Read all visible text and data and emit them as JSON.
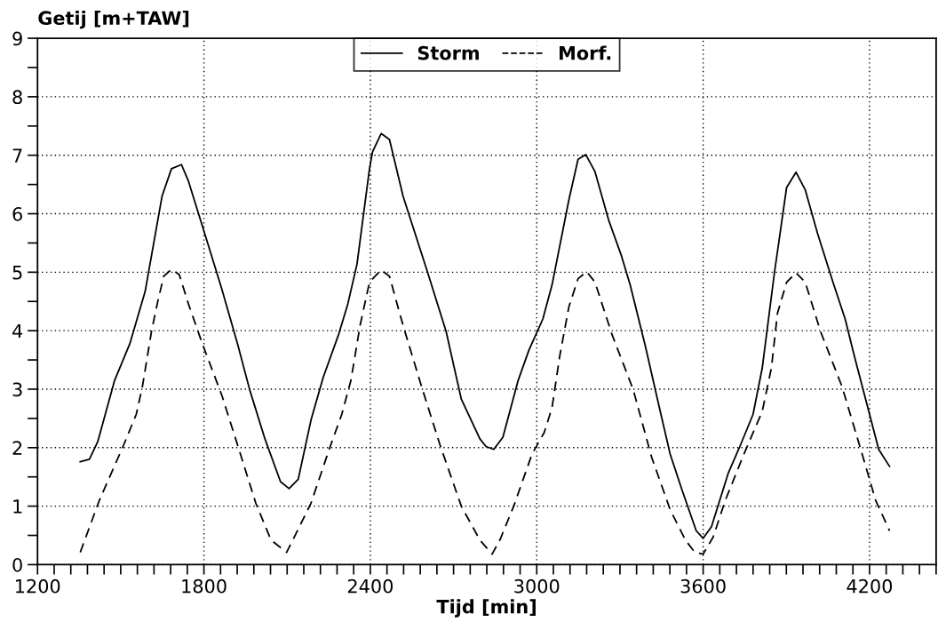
{
  "chart_data": {
    "type": "line",
    "ylabel": "Getij [m+TAW]",
    "xlabel": "Tijd [min]",
    "xlim": [
      1200,
      4440
    ],
    "ylim": [
      0,
      9
    ],
    "xticks": [
      1200,
      {
        "value": 1260,
        "label": null
      },
      {
        "value": 1320,
        "label": null
      },
      {
        "value": 1380,
        "label": null
      },
      {
        "value": 1440,
        "label": null
      },
      {
        "value": 1500,
        "label": null
      },
      {
        "value": 1560,
        "label": null
      },
      {
        "value": 1620,
        "label": null
      },
      {
        "value": 1680,
        "label": null
      },
      {
        "value": 1740,
        "label": null
      },
      1800,
      {
        "value": 1860,
        "label": null
      },
      {
        "value": 1920,
        "label": null
      },
      {
        "value": 1980,
        "label": null
      },
      {
        "value": 2040,
        "label": null
      },
      {
        "value": 2100,
        "label": null
      },
      {
        "value": 2160,
        "label": null
      },
      {
        "value": 2220,
        "label": null
      },
      {
        "value": 2280,
        "label": null
      },
      {
        "value": 2340,
        "label": null
      },
      2400,
      {
        "value": 2460,
        "label": null
      },
      {
        "value": 2520,
        "label": null
      },
      {
        "value": 2580,
        "label": null
      },
      {
        "value": 2640,
        "label": null
      },
      {
        "value": 2700,
        "label": null
      },
      {
        "value": 2760,
        "label": null
      },
      {
        "value": 2820,
        "label": null
      },
      {
        "value": 2880,
        "label": null
      },
      {
        "value": 2940,
        "label": null
      },
      3000,
      {
        "value": 3060,
        "label": null
      },
      {
        "value": 3120,
        "label": null
      },
      {
        "value": 3180,
        "label": null
      },
      {
        "value": 3240,
        "label": null
      },
      {
        "value": 3300,
        "label": null
      },
      {
        "value": 3360,
        "label": null
      },
      {
        "value": 3420,
        "label": null
      },
      {
        "value": 3480,
        "label": null
      },
      {
        "value": 3540,
        "label": null
      },
      3600,
      {
        "value": 3660,
        "label": null
      },
      {
        "value": 3720,
        "label": null
      },
      {
        "value": 3780,
        "label": null
      },
      {
        "value": 3840,
        "label": null
      },
      {
        "value": 3900,
        "label": null
      },
      {
        "value": 3960,
        "label": null
      },
      {
        "value": 4020,
        "label": null
      },
      {
        "value": 4080,
        "label": null
      },
      {
        "value": 4140,
        "label": null
      },
      4200,
      {
        "value": 4260,
        "label": null
      },
      {
        "value": 4320,
        "label": null
      },
      {
        "value": 4380,
        "label": null
      },
      {
        "value": 4440,
        "label": null
      }
    ],
    "yticks": [
      0,
      {
        "value": 0.5,
        "label": null
      },
      1,
      {
        "value": 1.5,
        "label": null
      },
      2,
      {
        "value": 2.5,
        "label": null
      },
      3,
      {
        "value": 3.5,
        "label": null
      },
      4,
      {
        "value": 4.5,
        "label": null
      },
      5,
      {
        "value": 5.5,
        "label": null
      },
      6,
      {
        "value": 6.5,
        "label": null
      },
      7,
      {
        "value": 7.5,
        "label": null
      },
      8,
      {
        "value": 8.5,
        "label": null
      },
      9
    ],
    "grid": true,
    "legend": "top",
    "marker": "none",
    "series": [
      {
        "name": "Storm",
        "color": "#000000",
        "line_style": "solid",
        "x": [
          1354,
          1387,
          1417,
          1478,
          1533,
          1588,
          1649,
          1683,
          1719,
          1744,
          1799,
          1864,
          1921,
          1965,
          2020,
          2076,
          2107,
          2140,
          2186,
          2230,
          2286,
          2319,
          2352,
          2397,
          2408,
          2439,
          2469,
          2518,
          2607,
          2673,
          2728,
          2795,
          2817,
          2845,
          2878,
          2933,
          2972,
          3022,
          3055,
          3116,
          3149,
          3177,
          3210,
          3260,
          3304,
          3337,
          3392,
          3437,
          3481,
          3525,
          3575,
          3600,
          3630,
          3691,
          3735,
          3780,
          3813,
          3857,
          3901,
          3935,
          3968,
          4012,
          4068,
          4112,
          4145,
          4200,
          4233,
          4272
        ],
        "values": [
          1.76,
          1.8,
          2.1,
          3.15,
          3.78,
          4.67,
          6.3,
          6.77,
          6.84,
          6.56,
          5.72,
          4.72,
          3.78,
          2.99,
          2.15,
          1.42,
          1.3,
          1.46,
          2.47,
          3.2,
          3.94,
          4.46,
          5.14,
          6.77,
          7.06,
          7.37,
          7.27,
          6.3,
          4.99,
          3.99,
          2.83,
          2.15,
          2.02,
          1.97,
          2.18,
          3.15,
          3.67,
          4.2,
          4.78,
          6.24,
          6.93,
          7.01,
          6.72,
          5.88,
          5.3,
          4.78,
          3.73,
          2.79,
          1.89,
          1.26,
          0.58,
          0.45,
          0.65,
          1.57,
          2.05,
          2.57,
          3.36,
          4.99,
          6.45,
          6.71,
          6.41,
          5.67,
          4.83,
          4.2,
          3.57,
          2.57,
          1.97,
          1.68
        ]
      },
      {
        "name": "Morf.",
        "color": "#000000",
        "line_style": "dashed",
        "x": [
          1354,
          1423,
          1511,
          1556,
          1578,
          1611,
          1634,
          1655,
          1683,
          1711,
          1744,
          1794,
          1865,
          1921,
          1987,
          2042,
          2098,
          2131,
          2186,
          2253,
          2297,
          2330,
          2363,
          2397,
          2439,
          2469,
          2518,
          2585,
          2651,
          2728,
          2795,
          2839,
          2867,
          2917,
          2983,
          3027,
          3055,
          3083,
          3116,
          3149,
          3180,
          3210,
          3271,
          3348,
          3414,
          3481,
          3536,
          3570,
          3600,
          3636,
          3680,
          3747,
          3813,
          3846,
          3868,
          3901,
          3935,
          3968,
          4023,
          4101,
          4167,
          4222,
          4272
        ],
        "values": [
          0.21,
          1.1,
          2.05,
          2.57,
          3.04,
          3.99,
          4.51,
          4.93,
          5.05,
          4.96,
          4.46,
          3.78,
          2.89,
          2.05,
          1.05,
          0.42,
          0.21,
          0.52,
          1.05,
          1.99,
          2.57,
          3.15,
          4.09,
          4.83,
          5.04,
          4.93,
          4.09,
          3.04,
          2.05,
          1.0,
          0.42,
          0.18,
          0.42,
          1.0,
          1.89,
          2.26,
          2.68,
          3.57,
          4.41,
          4.89,
          5.01,
          4.83,
          3.94,
          2.99,
          1.84,
          0.94,
          0.42,
          0.21,
          0.18,
          0.47,
          1.1,
          1.89,
          2.62,
          3.36,
          4.3,
          4.83,
          4.99,
          4.83,
          3.99,
          3.04,
          1.99,
          1.1,
          0.58
        ]
      }
    ]
  }
}
